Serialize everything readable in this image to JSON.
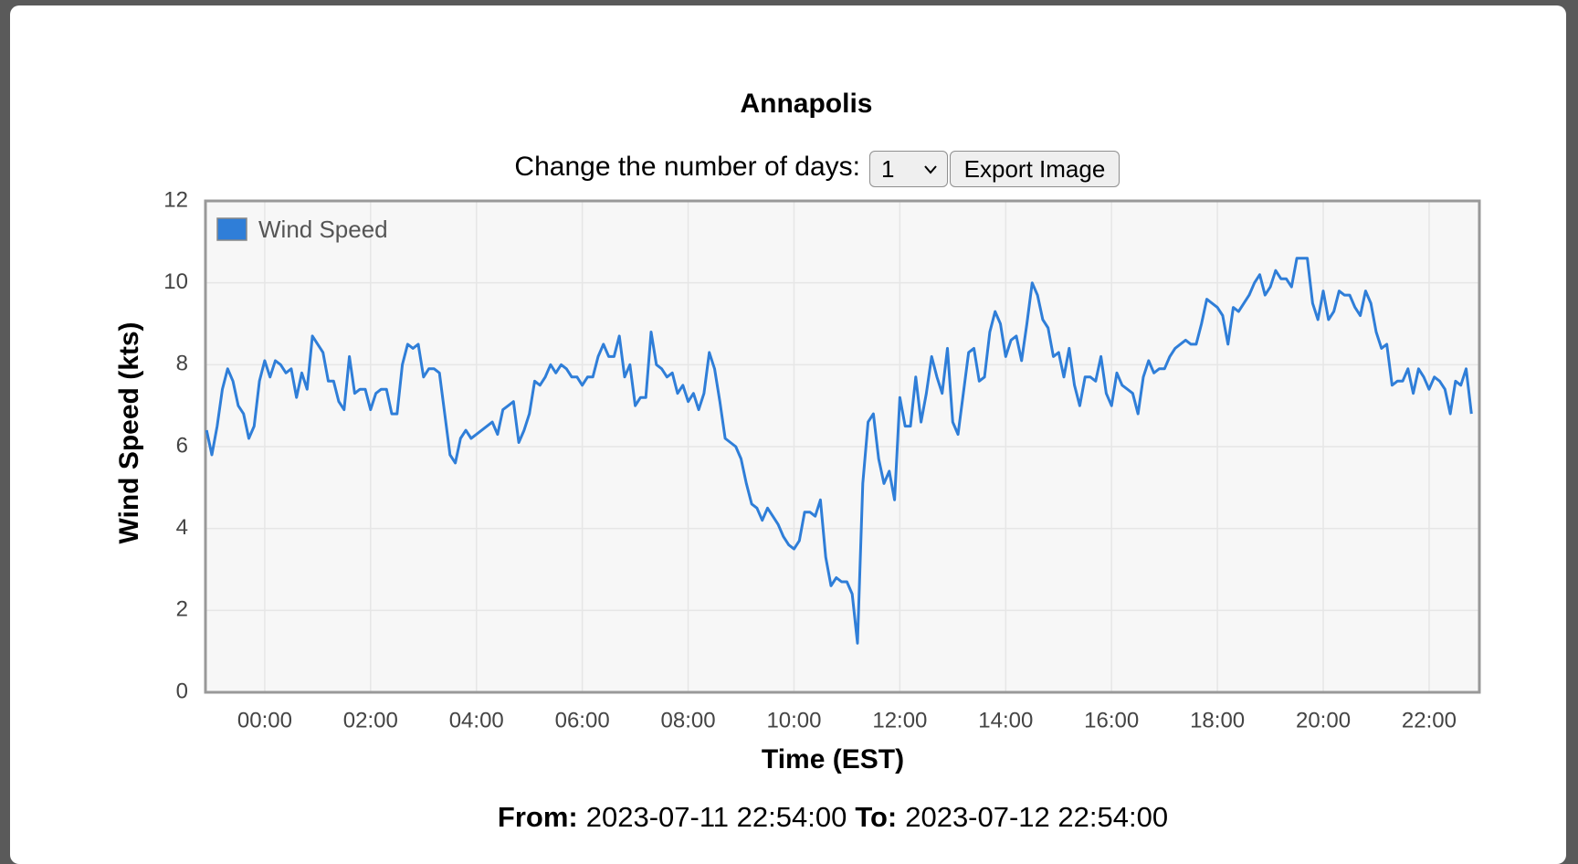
{
  "header": {
    "title": "Annapolis"
  },
  "controls": {
    "days_label": "Change the number of days:",
    "days_value": "1",
    "export_button": "Export Image"
  },
  "chart_data": {
    "type": "line",
    "x_label": "Time (EST)",
    "y_label": "Wind Speed (kts)",
    "legend": "upper left",
    "grid": true,
    "xlim": [
      -1.12,
      22.95
    ],
    "xticks": [
      {
        "value": 0,
        "label": "00:00"
      },
      {
        "value": 2,
        "label": "02:00"
      },
      {
        "value": 4,
        "label": "04:00"
      },
      {
        "value": 6,
        "label": "06:00"
      },
      {
        "value": 8,
        "label": "08:00"
      },
      {
        "value": 10,
        "label": "10:00"
      },
      {
        "value": 12,
        "label": "12:00"
      },
      {
        "value": 14,
        "label": "14:00"
      },
      {
        "value": 16,
        "label": "16:00"
      },
      {
        "value": 18,
        "label": "18:00"
      },
      {
        "value": 20,
        "label": "20:00"
      },
      {
        "value": 22,
        "label": "22:00"
      }
    ],
    "ylim": [
      0,
      12
    ],
    "yticks": [
      0,
      2,
      4,
      6,
      8,
      10,
      12
    ],
    "x": [
      -1.1,
      -1,
      -0.9,
      -0.8,
      -0.7,
      -0.6,
      -0.5,
      -0.4,
      -0.3,
      -0.2,
      -0.1,
      0,
      0.1,
      0.2,
      0.3,
      0.4,
      0.5,
      0.6,
      0.7,
      0.8,
      0.9,
      1,
      1.1,
      1.2,
      1.3,
      1.4,
      1.5,
      1.6,
      1.7,
      1.8,
      1.9,
      2,
      2.1,
      2.2,
      2.3,
      2.4,
      2.5,
      2.6,
      2.7,
      2.8,
      2.9,
      3,
      3.1,
      3.2,
      3.3,
      3.4,
      3.5,
      3.6,
      3.7,
      3.8,
      3.9,
      4,
      4.1,
      4.2,
      4.3,
      4.4,
      4.5,
      4.6,
      4.7,
      4.8,
      4.9,
      5,
      5.1,
      5.2,
      5.3,
      5.4,
      5.5,
      5.6,
      5.7,
      5.8,
      5.9,
      6,
      6.1,
      6.2,
      6.3,
      6.4,
      6.5,
      6.6,
      6.7,
      6.8,
      6.9,
      7,
      7.1,
      7.2,
      7.3,
      7.4,
      7.5,
      7.6,
      7.7,
      7.8,
      7.9,
      8,
      8.1,
      8.2,
      8.3,
      8.4,
      8.5,
      8.6,
      8.7,
      8.8,
      8.9,
      9,
      9.1,
      9.2,
      9.3,
      9.4,
      9.5,
      9.6,
      9.7,
      9.8,
      9.9,
      10,
      10.1,
      10.2,
      10.3,
      10.4,
      10.5,
      10.6,
      10.7,
      10.8,
      10.9,
      11,
      11.1,
      11.2,
      11.3,
      11.4,
      11.5,
      11.6,
      11.7,
      11.8,
      11.9,
      12,
      12.1,
      12.2,
      12.3,
      12.4,
      12.5,
      12.6,
      12.7,
      12.8,
      12.9,
      13,
      13.1,
      13.2,
      13.3,
      13.4,
      13.5,
      13.6,
      13.7,
      13.8,
      13.9,
      14,
      14.1,
      14.2,
      14.3,
      14.4,
      14.5,
      14.6,
      14.7,
      14.8,
      14.9,
      15,
      15.1,
      15.2,
      15.3,
      15.4,
      15.5,
      15.6,
      15.7,
      15.8,
      15.9,
      16,
      16.1,
      16.2,
      16.3,
      16.4,
      16.5,
      16.6,
      16.7,
      16.8,
      16.9,
      17,
      17.1,
      17.2,
      17.3,
      17.4,
      17.5,
      17.6,
      17.7,
      17.8,
      17.9,
      18,
      18.1,
      18.2,
      18.3,
      18.4,
      18.5,
      18.6,
      18.7,
      18.8,
      18.9,
      19,
      19.1,
      19.2,
      19.3,
      19.4,
      19.5,
      19.6,
      19.7,
      19.8,
      19.9,
      20,
      20.1,
      20.2,
      20.3,
      20.4,
      20.5,
      20.6,
      20.7,
      20.8,
      20.9,
      21,
      21.1,
      21.2,
      21.3,
      21.4,
      21.5,
      21.6,
      21.7,
      21.8,
      21.9,
      22,
      22.1,
      22.2,
      22.3,
      22.4,
      22.5,
      22.6,
      22.7,
      22.8
    ],
    "series": [
      {
        "name": "Wind Speed",
        "color": "#2f7ed8",
        "values": [
          6.4,
          5.8,
          6.5,
          7.4,
          7.9,
          7.6,
          7.0,
          6.8,
          6.2,
          6.5,
          7.6,
          8.1,
          7.7,
          8.1,
          8.0,
          7.8,
          7.9,
          7.2,
          7.8,
          7.4,
          8.7,
          8.5,
          8.3,
          7.6,
          7.6,
          7.1,
          6.9,
          8.2,
          7.3,
          7.4,
          7.4,
          6.9,
          7.3,
          7.4,
          7.4,
          6.8,
          6.8,
          8.0,
          8.5,
          8.4,
          8.5,
          7.7,
          7.9,
          7.9,
          7.8,
          6.8,
          5.8,
          5.6,
          6.2,
          6.4,
          6.2,
          6.3,
          6.4,
          6.5,
          6.6,
          6.3,
          6.9,
          7.0,
          7.1,
          6.1,
          6.4,
          6.8,
          7.6,
          7.5,
          7.7,
          8.0,
          7.8,
          8.0,
          7.9,
          7.7,
          7.7,
          7.5,
          7.7,
          7.7,
          8.2,
          8.5,
          8.2,
          8.2,
          8.7,
          7.7,
          8.0,
          7.0,
          7.2,
          7.2,
          8.8,
          8.0,
          7.9,
          7.7,
          7.8,
          7.3,
          7.5,
          7.1,
          7.3,
          6.9,
          7.3,
          8.3,
          7.9,
          7.1,
          6.2,
          6.1,
          6.0,
          5.7,
          5.1,
          4.6,
          4.5,
          4.2,
          4.5,
          4.3,
          4.1,
          3.8,
          3.6,
          3.5,
          3.7,
          4.4,
          4.4,
          4.3,
          4.7,
          3.3,
          2.6,
          2.8,
          2.7,
          2.7,
          2.4,
          1.2,
          5.1,
          6.6,
          6.8,
          5.7,
          5.1,
          5.4,
          4.7,
          7.2,
          6.5,
          6.5,
          7.7,
          6.6,
          7.3,
          8.2,
          7.7,
          7.3,
          8.4,
          6.6,
          6.3,
          7.3,
          8.3,
          8.4,
          7.6,
          7.7,
          8.8,
          9.3,
          9.0,
          8.2,
          8.6,
          8.7,
          8.1,
          9.0,
          10.0,
          9.7,
          9.1,
          8.9,
          8.2,
          8.3,
          7.7,
          8.4,
          7.5,
          7.0,
          7.7,
          7.7,
          7.6,
          8.2,
          7.3,
          7.0,
          7.8,
          7.5,
          7.4,
          7.3,
          6.8,
          7.7,
          8.1,
          7.8,
          7.9,
          7.9,
          8.2,
          8.4,
          8.5,
          8.6,
          8.5,
          8.5,
          9.0,
          9.6,
          9.5,
          9.4,
          9.2,
          8.5,
          9.4,
          9.3,
          9.5,
          9.7,
          10.0,
          10.2,
          9.7,
          9.9,
          10.3,
          10.1,
          10.1,
          9.9,
          10.6,
          10.6,
          10.6,
          9.5,
          9.1,
          9.8,
          9.1,
          9.3,
          9.8,
          9.7,
          9.7,
          9.4,
          9.2,
          9.8,
          9.5,
          8.8,
          8.4,
          8.5,
          7.5,
          7.6,
          7.6,
          7.9,
          7.3,
          7.9,
          7.7,
          7.4,
          7.7,
          7.6,
          7.4,
          6.8,
          7.6,
          7.5,
          7.9,
          6.8
        ]
      }
    ]
  },
  "footer": {
    "from_label": "From:",
    "from": "2023-07-11 22:54:00",
    "to_label": "To:",
    "to": "2023-07-12 22:54:00"
  }
}
